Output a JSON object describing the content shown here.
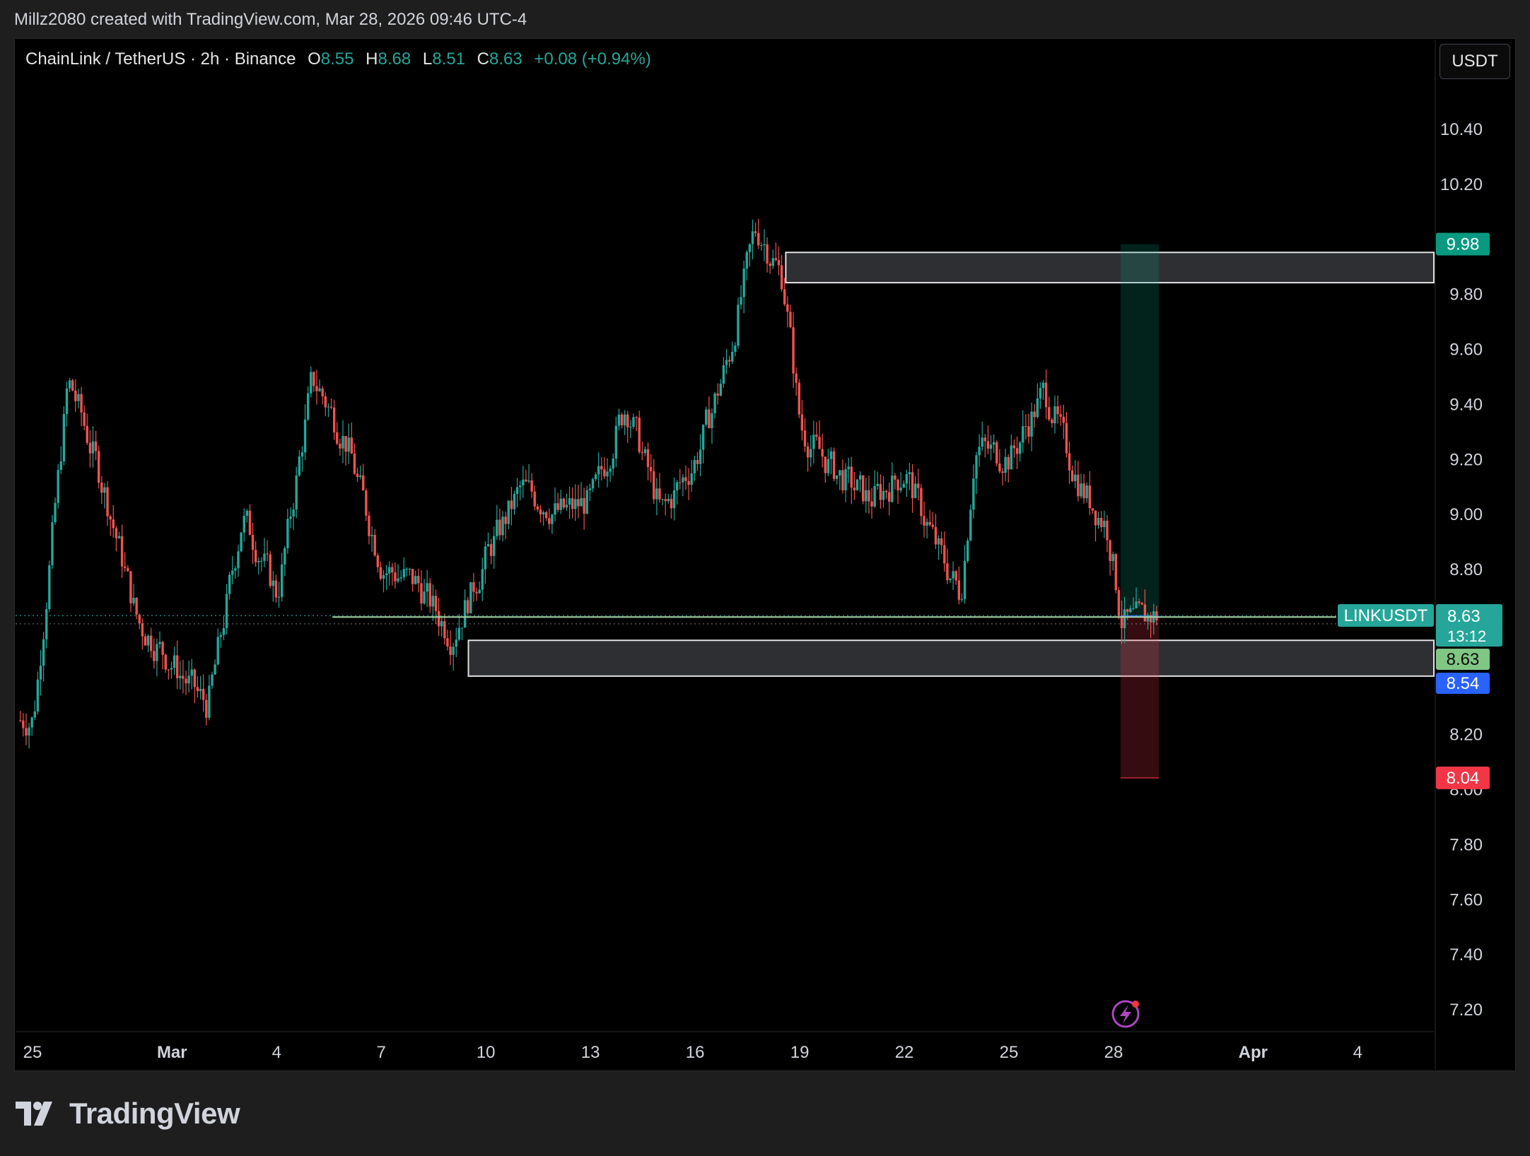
{
  "caption": "Millz2080 created with TradingView.com, Mar 28, 2026 09:46 UTC-4",
  "legend": {
    "symbol": "ChainLink / TetherUS · 2h · Binance",
    "o_label": "O",
    "o_value": "8.55",
    "h_label": "H",
    "h_value": "8.68",
    "l_label": "L",
    "l_value": "8.51",
    "c_label": "C",
    "c_value": "8.63",
    "change": "+0.08 (+0.94%)"
  },
  "currency_button": "USDT",
  "price_axis": {
    "ticks": [
      "10.40",
      "10.20",
      "9.80",
      "9.60",
      "9.40",
      "9.20",
      "9.00",
      "8.80",
      "8.20",
      "8.00",
      "7.80",
      "7.60",
      "7.40",
      "7.20"
    ]
  },
  "time_axis": {
    "ticks": [
      "25",
      "Mar",
      "4",
      "7",
      "10",
      "13",
      "16",
      "19",
      "22",
      "25",
      "28",
      "Apr",
      "4"
    ]
  },
  "price_labels": {
    "target": "9.98",
    "symbol_tag": "LINKUSDT",
    "last_price": "8.63",
    "countdown": "13:12",
    "entry": "8.63",
    "blue_level": "8.54",
    "stop": "8.04"
  },
  "colors": {
    "up": "#26a69a",
    "down": "#ef5350",
    "target_label": "#089981",
    "entry_label": "#81c784",
    "blue_label": "#2962ff",
    "stop_label": "#f23645"
  },
  "chart_data": {
    "type": "candlestick",
    "symbol": "LINKUSDT",
    "interval": "2h",
    "exchange": "Binance",
    "ylim": [
      7.1,
      10.6
    ],
    "last": {
      "open": 8.55,
      "high": 8.68,
      "low": 8.51,
      "close": 8.63
    },
    "price_path": [
      [
        "Feb 25",
        8.25
      ],
      [
        "Feb 26",
        9.5
      ],
      [
        "Feb 27",
        9.1
      ],
      [
        "Feb 28",
        8.6
      ],
      [
        "Mar 1",
        8.3
      ],
      [
        "Mar 2",
        9.0
      ],
      [
        "Mar 3",
        8.7
      ],
      [
        "Mar 4",
        9.5
      ],
      [
        "Mar 5",
        9.25
      ],
      [
        "Mar 6",
        8.8
      ],
      [
        "Mar 7",
        8.75
      ],
      [
        "Mar 8",
        8.55
      ],
      [
        "Mar 9",
        8.85
      ],
      [
        "Mar 10",
        9.1
      ],
      [
        "Mar 11",
        9.0
      ],
      [
        "Mar 12",
        9.05
      ],
      [
        "Mar 13",
        9.4
      ],
      [
        "Mar 14",
        9.0
      ],
      [
        "Mar 15",
        9.2
      ],
      [
        "Mar 16",
        9.6
      ],
      [
        "Mar 16.7",
        10.05
      ],
      [
        "Mar 17.5",
        9.85
      ],
      [
        "Mar 18",
        9.3
      ],
      [
        "Mar 19",
        9.15
      ],
      [
        "Mar 20",
        9.05
      ],
      [
        "Mar 21",
        9.15
      ],
      [
        "Mar 22",
        8.85
      ],
      [
        "Mar 22.6",
        8.7
      ],
      [
        "Mar 23",
        9.25
      ],
      [
        "Mar 24",
        9.2
      ],
      [
        "Mar 25",
        9.45
      ],
      [
        "Mar 26",
        9.1
      ],
      [
        "Mar 26.8",
        8.95
      ],
      [
        "Mar 27.2",
        8.6
      ],
      [
        "Mar 28",
        8.63
      ]
    ],
    "zones": [
      {
        "name": "supply-zone",
        "from": "Mar 17.6",
        "top": 9.95,
        "bottom": 9.84
      },
      {
        "name": "demand-zone",
        "from": "Mar 8.5",
        "top": 8.54,
        "bottom": 8.41
      }
    ],
    "position": {
      "type": "long",
      "entry": 8.63,
      "target": 9.98,
      "stop": 8.04,
      "from": "Mar 27.2",
      "to": "Mar 31"
    }
  }
}
